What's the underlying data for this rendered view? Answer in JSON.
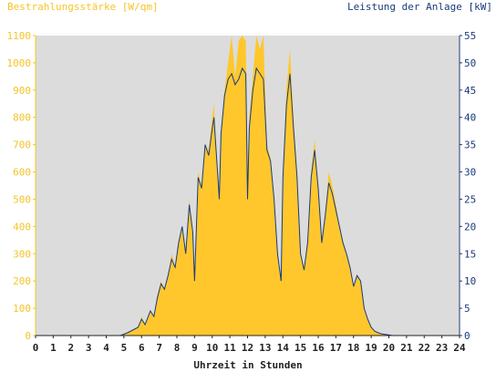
{
  "chart_data": {
    "type": "area",
    "xlabel": "Uhrzeit in Stunden",
    "ylabel_left": "Bestrahlungsstärke [W/qm]",
    "ylabel_right": "Leistung der Anlage [kW]",
    "xlim": [
      0,
      24
    ],
    "ylim_left": [
      0,
      1100
    ],
    "ylim_right": [
      0,
      55
    ],
    "x_ticks": [
      "0",
      "1",
      "2",
      "3",
      "4",
      "5",
      "6",
      "7",
      "8",
      "9",
      "10",
      "11",
      "12",
      "13",
      "14",
      "15",
      "16",
      "17",
      "18",
      "19",
      "20",
      "21",
      "22",
      "23",
      "24"
    ],
    "y_ticks_left": [
      "0",
      "100",
      "200",
      "300",
      "400",
      "500",
      "600",
      "700",
      "800",
      "900",
      "1000",
      "1100"
    ],
    "y_ticks_right": [
      "0",
      "5",
      "10",
      "15",
      "20",
      "25",
      "30",
      "35",
      "40",
      "45",
      "50",
      "55"
    ],
    "grid": false,
    "colors": {
      "irradiance": "#ffc72c",
      "power": "#1a3a7c",
      "plot_bg": "#dcdcdc",
      "left_axis": "#f5c428",
      "right_axis": "#1a3a7c"
    },
    "series": [
      {
        "key": "irradiance",
        "x": [
          0,
          4.8,
          5.2,
          5.5,
          5.8,
          6.0,
          6.2,
          6.5,
          6.7,
          6.9,
          7.1,
          7.3,
          7.5,
          7.7,
          7.9,
          8.1,
          8.3,
          8.5,
          8.7,
          8.9,
          9.0,
          9.2,
          9.4,
          9.6,
          9.8,
          10.0,
          10.1,
          10.2,
          10.3,
          10.4,
          10.5,
          10.7,
          10.9,
          11.1,
          11.3,
          11.5,
          11.7,
          11.9,
          12.0,
          12.1,
          12.3,
          12.5,
          12.7,
          12.9,
          13.1,
          13.3,
          13.5,
          13.7,
          13.9,
          14.0,
          14.2,
          14.4,
          14.6,
          14.8,
          15.0,
          15.2,
          15.4,
          15.6,
          15.8,
          16.0,
          16.2,
          16.4,
          16.6,
          16.8,
          17.0,
          17.2,
          17.4,
          17.6,
          17.8,
          18.0,
          18.2,
          18.4,
          18.6,
          18.8,
          19.0,
          19.2,
          19.4,
          19.6,
          19.8,
          20.0,
          20.2,
          20.4,
          24
        ],
        "y": [
          0,
          0,
          10,
          20,
          30,
          70,
          40,
          90,
          70,
          150,
          200,
          170,
          220,
          300,
          250,
          350,
          400,
          300,
          500,
          380,
          200,
          600,
          550,
          700,
          680,
          800,
          850,
          700,
          600,
          500,
          750,
          900,
          1000,
          1100,
          950,
          1080,
          1100,
          1080,
          600,
          800,
          950,
          1100,
          1050,
          1100,
          700,
          650,
          500,
          300,
          200,
          600,
          900,
          1050,
          800,
          600,
          300,
          250,
          350,
          600,
          720,
          550,
          350,
          450,
          600,
          550,
          480,
          400,
          350,
          300,
          250,
          180,
          220,
          200,
          100,
          60,
          30,
          15,
          10,
          5,
          3,
          2,
          0,
          0,
          0
        ]
      },
      {
        "key": "power",
        "x": [
          0,
          4.8,
          5.2,
          5.5,
          5.8,
          6.0,
          6.2,
          6.5,
          6.7,
          6.9,
          7.1,
          7.3,
          7.5,
          7.7,
          7.9,
          8.1,
          8.3,
          8.5,
          8.7,
          8.9,
          9.0,
          9.2,
          9.4,
          9.6,
          9.8,
          10.0,
          10.1,
          10.2,
          10.3,
          10.4,
          10.5,
          10.7,
          10.9,
          11.1,
          11.3,
          11.5,
          11.7,
          11.9,
          12.0,
          12.1,
          12.3,
          12.5,
          12.7,
          12.9,
          13.1,
          13.3,
          13.5,
          13.7,
          13.9,
          14.0,
          14.2,
          14.4,
          14.6,
          14.8,
          15.0,
          15.2,
          15.4,
          15.6,
          15.8,
          16.0,
          16.2,
          16.4,
          16.6,
          16.8,
          17.0,
          17.2,
          17.4,
          17.6,
          17.8,
          18.0,
          18.2,
          18.4,
          18.6,
          18.8,
          19.0,
          19.2,
          19.4,
          19.6,
          19.8,
          20.0,
          20.2,
          20.4,
          24
        ],
        "y": [
          0,
          0,
          0.5,
          1,
          1.5,
          3,
          2,
          4.5,
          3.5,
          7,
          9.5,
          8.5,
          11,
          14,
          12.5,
          17,
          20,
          15,
          24,
          19,
          10,
          29,
          27,
          35,
          33,
          38,
          40,
          35,
          30,
          25,
          37,
          44,
          47,
          48,
          46,
          47,
          49,
          48,
          25,
          38,
          45,
          49,
          48,
          47,
          34,
          32,
          25,
          15,
          10,
          29,
          42,
          48,
          38,
          29,
          15,
          12,
          17,
          29,
          34,
          27,
          17,
          22,
          28,
          26,
          23,
          20,
          17,
          15,
          12.5,
          9,
          11,
          10,
          5,
          3,
          1.5,
          0.8,
          0.5,
          0.3,
          0.2,
          0.1,
          0,
          0,
          0
        ]
      }
    ]
  }
}
